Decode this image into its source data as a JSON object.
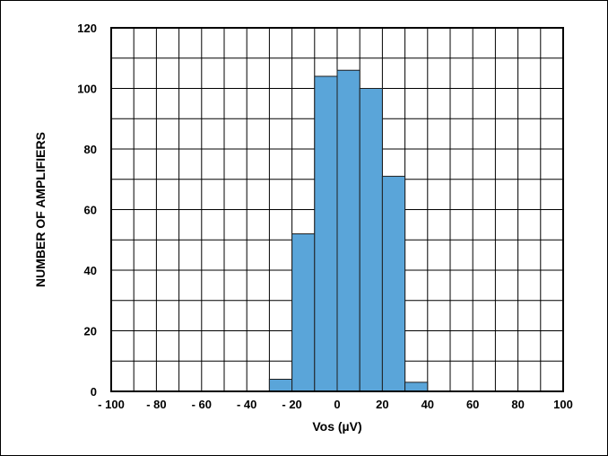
{
  "chart_data": {
    "type": "bar",
    "xlabel": "Vos (µV)",
    "ylabel": "NUMBER OF AMPLIFIERS",
    "xlim": [
      -100,
      100
    ],
    "ylim": [
      0,
      120
    ],
    "x_ticks": [
      -100,
      -80,
      -60,
      -40,
      -20,
      0,
      20,
      40,
      60,
      80,
      100
    ],
    "x_tick_labels": [
      "- 100",
      "- 80",
      "- 60",
      "- 40",
      "- 20",
      "0",
      "20",
      "40",
      "60",
      "80",
      "100"
    ],
    "y_ticks": [
      0,
      20,
      40,
      60,
      80,
      100,
      120
    ],
    "y_tick_labels": [
      "0",
      "20",
      "40",
      "60",
      "80",
      "100",
      "120"
    ],
    "bin_width": 10,
    "bins": [
      {
        "x0": -30,
        "x1": -20,
        "value": 4
      },
      {
        "x0": -20,
        "x1": -10,
        "value": 52
      },
      {
        "x0": -10,
        "x1": 0,
        "value": 104
      },
      {
        "x0": 0,
        "x1": 10,
        "value": 106
      },
      {
        "x0": 10,
        "x1": 20,
        "value": 100
      },
      {
        "x0": 20,
        "x1": 30,
        "value": 71
      },
      {
        "x0": 30,
        "x1": 40,
        "value": 3
      }
    ],
    "grid": true,
    "bar_color": "#5aa5d9",
    "bar_edge_color": "#1f1f1f"
  }
}
